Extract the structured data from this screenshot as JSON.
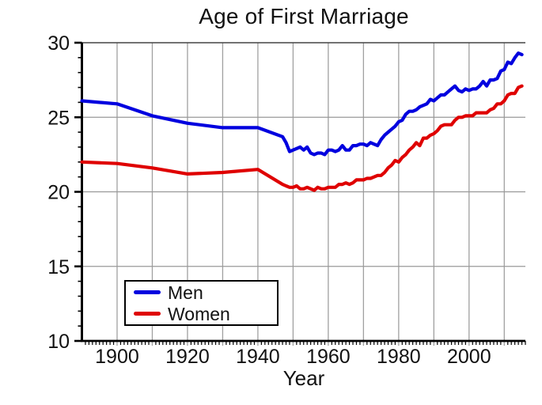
{
  "chart_data": {
    "type": "line",
    "title": "Age of First Marriage",
    "xlabel": "Year",
    "ylabel": "",
    "xlim": [
      1890,
      2016
    ],
    "ylim": [
      10,
      30
    ],
    "grid": true,
    "legend_position": "lower-left",
    "x_labeled_ticks": [
      1900,
      1920,
      1940,
      1960,
      1980,
      2000
    ],
    "x_gridline_start": 1900,
    "x_gridline_end": 2010,
    "x_gridline_step": 10,
    "y_major_ticks": [
      10,
      15,
      20,
      25,
      30
    ],
    "y_gridlines": [
      15,
      20,
      25
    ],
    "colors": {
      "men": "#0000df",
      "women": "#df0000",
      "grid": "#a0a0a0",
      "axis": "#000000"
    },
    "x": [
      1890,
      1900,
      1910,
      1920,
      1930,
      1940,
      1947,
      1948,
      1949,
      1950,
      1951,
      1952,
      1953,
      1954,
      1955,
      1956,
      1957,
      1958,
      1959,
      1960,
      1961,
      1962,
      1963,
      1964,
      1965,
      1966,
      1967,
      1968,
      1969,
      1970,
      1971,
      1972,
      1973,
      1974,
      1975,
      1976,
      1977,
      1978,
      1979,
      1980,
      1981,
      1982,
      1983,
      1984,
      1985,
      1986,
      1987,
      1988,
      1989,
      1990,
      1991,
      1992,
      1993,
      1994,
      1995,
      1996,
      1997,
      1998,
      1999,
      2000,
      2001,
      2002,
      2003,
      2004,
      2005,
      2006,
      2007,
      2008,
      2009,
      2010,
      2011,
      2012,
      2013,
      2014,
      2015
    ],
    "series": [
      {
        "name": "Men",
        "color_key": "men",
        "values": [
          26.1,
          25.9,
          25.1,
          24.6,
          24.3,
          24.3,
          23.7,
          23.3,
          22.7,
          22.8,
          22.9,
          23.0,
          22.8,
          23.0,
          22.6,
          22.5,
          22.6,
          22.6,
          22.5,
          22.8,
          22.8,
          22.7,
          22.8,
          23.1,
          22.8,
          22.8,
          23.1,
          23.1,
          23.2,
          23.2,
          23.1,
          23.3,
          23.2,
          23.1,
          23.5,
          23.8,
          24.0,
          24.2,
          24.4,
          24.7,
          24.8,
          25.2,
          25.4,
          25.4,
          25.5,
          25.7,
          25.8,
          25.9,
          26.2,
          26.1,
          26.3,
          26.5,
          26.5,
          26.7,
          26.9,
          27.1,
          26.8,
          26.7,
          26.9,
          26.8,
          26.9,
          26.9,
          27.1,
          27.4,
          27.1,
          27.5,
          27.5,
          27.6,
          28.1,
          28.2,
          28.7,
          28.6,
          29.0,
          29.3,
          29.2
        ]
      },
      {
        "name": "Women",
        "color_key": "women",
        "values": [
          22.0,
          21.9,
          21.6,
          21.2,
          21.3,
          21.5,
          20.5,
          20.4,
          20.3,
          20.3,
          20.4,
          20.2,
          20.2,
          20.3,
          20.2,
          20.1,
          20.3,
          20.2,
          20.2,
          20.3,
          20.3,
          20.3,
          20.5,
          20.5,
          20.6,
          20.5,
          20.6,
          20.8,
          20.8,
          20.8,
          20.9,
          20.9,
          21.0,
          21.1,
          21.1,
          21.3,
          21.6,
          21.8,
          22.1,
          22.0,
          22.3,
          22.5,
          22.8,
          23.0,
          23.3,
          23.1,
          23.6,
          23.6,
          23.8,
          23.9,
          24.1,
          24.4,
          24.5,
          24.5,
          24.5,
          24.8,
          25.0,
          25.0,
          25.1,
          25.1,
          25.1,
          25.3,
          25.3,
          25.3,
          25.3,
          25.5,
          25.6,
          25.9,
          25.9,
          26.1,
          26.5,
          26.6,
          26.6,
          27.0,
          27.1
        ]
      }
    ]
  }
}
